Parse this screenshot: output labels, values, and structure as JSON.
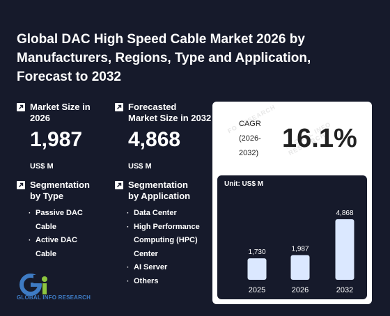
{
  "title": "Global DAC High Speed Cable Market 2026 by Manufacturers, Regions, Type and Application, Forecast to 2032",
  "market_size": {
    "label_line1": "Market Size in",
    "label_line2": "2026",
    "value": "1,987",
    "unit": "US$ M"
  },
  "forecast_size": {
    "label_line1": "Forecasted",
    "label_line2": "Market Size in 2032",
    "value": "4,868",
    "unit": "US$ M"
  },
  "seg_type": {
    "label_line1": "Segmentation",
    "label_line2": "by Type",
    "items": [
      [
        "Passive DAC",
        "Cable"
      ],
      [
        "Active DAC",
        "Cable"
      ]
    ]
  },
  "seg_app": {
    "label_line1": "Segmentation",
    "label_line2": "by Application",
    "items": [
      [
        "Data Center"
      ],
      [
        "High Performance",
        "Computing (HPC)",
        "Center"
      ],
      [
        "AI Server"
      ],
      [
        "Others"
      ]
    ]
  },
  "cagr": {
    "label_line1": "CAGR",
    "label_line2": "(2026-",
    "label_line3": "2032)",
    "value": "16.1%"
  },
  "watermark": {
    "text1": "GLOBAL INFO RESEARCH",
    "text2": "FO RESEARCH"
  },
  "logo": {
    "text": "GLOBAL INFO RESEARCH"
  },
  "colors": {
    "background": "#161a2b",
    "bar": "#dbe8ff",
    "logo_blue": "#3e7bc4",
    "logo_green": "#8dc63f"
  },
  "chart_data": {
    "type": "bar",
    "unit_label": "Unit: US$ M",
    "categories": [
      "2025",
      "2026",
      "2032"
    ],
    "values": [
      1730,
      1987,
      4868
    ],
    "value_labels": [
      "1,730",
      "1,987",
      "4,868"
    ]
  }
}
